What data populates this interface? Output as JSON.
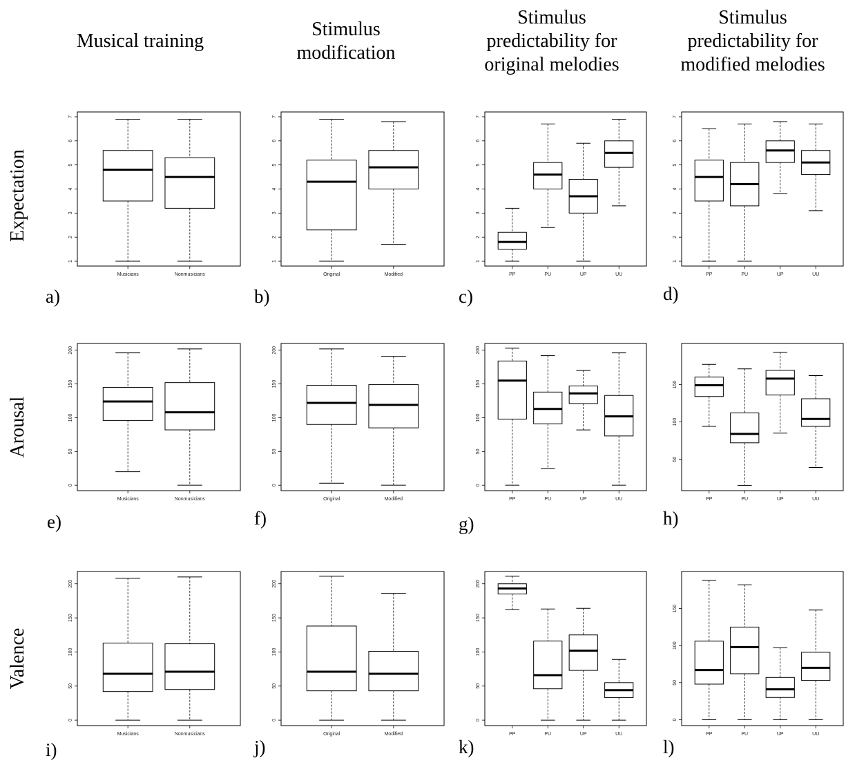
{
  "column_headers": [
    "Musical training",
    "Stimulus\nmodification",
    "Stimulus\npredictability for\noriginal melodies",
    "Stimulus\npredictability for\nmodified melodies"
  ],
  "row_headers": [
    "Expectation",
    "Arousal",
    "Valence"
  ],
  "chart_data": [
    {
      "panel": "a)",
      "type": "box",
      "categories": [
        "Musicians",
        "Nonmusicians"
      ],
      "yticks": [
        1,
        2,
        3,
        4,
        5,
        6,
        7
      ],
      "ylim": [
        0.8,
        7.2
      ],
      "boxes": [
        {
          "min": 1,
          "q1": 3.5,
          "median": 4.8,
          "q3": 5.6,
          "max": 6.9
        },
        {
          "min": 1,
          "q1": 3.2,
          "median": 4.5,
          "q3": 5.3,
          "max": 6.9
        }
      ]
    },
    {
      "panel": "b)",
      "type": "box",
      "categories": [
        "Original",
        "Modified"
      ],
      "yticks": [
        1,
        2,
        3,
        4,
        5,
        6,
        7
      ],
      "ylim": [
        0.8,
        7.2
      ],
      "boxes": [
        {
          "min": 1,
          "q1": 2.3,
          "median": 4.3,
          "q3": 5.2,
          "max": 6.9
        },
        {
          "min": 1.7,
          "q1": 4.0,
          "median": 4.9,
          "q3": 5.6,
          "max": 6.8
        }
      ]
    },
    {
      "panel": "c)",
      "type": "box",
      "categories": [
        "PP",
        "PU",
        "UP",
        "UU"
      ],
      "yticks": [
        1,
        2,
        3,
        4,
        5,
        6,
        7
      ],
      "ylim": [
        0.8,
        7.2
      ],
      "boxes": [
        {
          "min": 1,
          "q1": 1.5,
          "median": 1.8,
          "q3": 2.2,
          "max": 3.2
        },
        {
          "min": 2.4,
          "q1": 4.0,
          "median": 4.6,
          "q3": 5.1,
          "max": 6.7
        },
        {
          "min": 1,
          "q1": 3.0,
          "median": 3.7,
          "q3": 4.4,
          "max": 5.9
        },
        {
          "min": 3.3,
          "q1": 4.9,
          "median": 5.5,
          "q3": 6.0,
          "max": 6.9
        }
      ]
    },
    {
      "panel": "d)",
      "type": "box",
      "categories": [
        "PP",
        "PU",
        "UP",
        "UU"
      ],
      "yticks": [
        1,
        2,
        3,
        4,
        5,
        6,
        7
      ],
      "ylim": [
        0.8,
        7.2
      ],
      "boxes": [
        {
          "min": 1,
          "q1": 3.5,
          "median": 4.5,
          "q3": 5.2,
          "max": 6.5
        },
        {
          "min": 1,
          "q1": 3.3,
          "median": 4.2,
          "q3": 5.1,
          "max": 6.7
        },
        {
          "min": 3.8,
          "q1": 5.1,
          "median": 5.6,
          "q3": 6.0,
          "max": 6.8
        },
        {
          "min": 3.1,
          "q1": 4.6,
          "median": 5.1,
          "q3": 5.6,
          "max": 6.7
        }
      ]
    },
    {
      "panel": "e)",
      "type": "box",
      "categories": [
        "Musicians",
        "Nonmusicians"
      ],
      "yticks": [
        0,
        50,
        100,
        150,
        200
      ],
      "ylim": [
        -8,
        210
      ],
      "boxes": [
        {
          "min": 20,
          "q1": 96,
          "median": 124,
          "q3": 145,
          "max": 196
        },
        {
          "min": 0,
          "q1": 82,
          "median": 108,
          "q3": 152,
          "max": 202
        }
      ]
    },
    {
      "panel": "f)",
      "type": "box",
      "categories": [
        "Original",
        "Modified"
      ],
      "yticks": [
        0,
        50,
        100,
        150,
        200
      ],
      "ylim": [
        -8,
        210
      ],
      "boxes": [
        {
          "min": 3,
          "q1": 90,
          "median": 122,
          "q3": 148,
          "max": 202
        },
        {
          "min": 0,
          "q1": 85,
          "median": 119,
          "q3": 149,
          "max": 191
        }
      ]
    },
    {
      "panel": "g)",
      "type": "box",
      "categories": [
        "PP",
        "PU",
        "UP",
        "UU"
      ],
      "yticks": [
        0,
        50,
        100,
        150,
        200
      ],
      "ylim": [
        -8,
        210
      ],
      "boxes": [
        {
          "min": 0,
          "q1": 98,
          "median": 155,
          "q3": 184,
          "max": 203
        },
        {
          "min": 25,
          "q1": 91,
          "median": 113,
          "q3": 138,
          "max": 192
        },
        {
          "min": 82,
          "q1": 121,
          "median": 136,
          "q3": 147,
          "max": 170
        },
        {
          "min": 0,
          "q1": 73,
          "median": 102,
          "q3": 133,
          "max": 196
        }
      ]
    },
    {
      "panel": "h)",
      "type": "box",
      "categories": [
        "PP",
        "PU",
        "UP",
        "UU"
      ],
      "yticks": [
        50,
        100,
        150
      ],
      "ylim": [
        8,
        205
      ],
      "boxes": [
        {
          "min": 94,
          "q1": 134,
          "median": 149,
          "q3": 160,
          "max": 177
        },
        {
          "min": 15,
          "q1": 72,
          "median": 84,
          "q3": 112,
          "max": 171
        },
        {
          "min": 85,
          "q1": 136,
          "median": 158,
          "q3": 169,
          "max": 193
        },
        {
          "min": 39,
          "q1": 94,
          "median": 104,
          "q3": 131,
          "max": 162
        }
      ]
    },
    {
      "panel": "i)",
      "type": "box",
      "categories": [
        "Musicians",
        "Nonmusicians"
      ],
      "yticks": [
        0,
        50,
        100,
        150,
        200
      ],
      "ylim": [
        -8,
        218
      ],
      "boxes": [
        {
          "min": 0,
          "q1": 42,
          "median": 68,
          "q3": 113,
          "max": 208
        },
        {
          "min": 0,
          "q1": 45,
          "median": 71,
          "q3": 112,
          "max": 210
        }
      ]
    },
    {
      "panel": "j)",
      "type": "box",
      "categories": [
        "Original",
        "Modified"
      ],
      "yticks": [
        0,
        50,
        100,
        150,
        200
      ],
      "ylim": [
        -8,
        218
      ],
      "boxes": [
        {
          "min": 0,
          "q1": 43,
          "median": 71,
          "q3": 138,
          "max": 211
        },
        {
          "min": 0,
          "q1": 43,
          "median": 68,
          "q3": 101,
          "max": 186
        }
      ]
    },
    {
      "panel": "k)",
      "type": "box",
      "categories": [
        "PP",
        "PU",
        "UP",
        "UU"
      ],
      "yticks": [
        0,
        50,
        100,
        150,
        200
      ],
      "ylim": [
        -8,
        218
      ],
      "boxes": [
        {
          "min": 162,
          "q1": 185,
          "median": 193,
          "q3": 200,
          "max": 211
        },
        {
          "min": 0,
          "q1": 46,
          "median": 66,
          "q3": 116,
          "max": 163
        },
        {
          "min": 0,
          "q1": 73,
          "median": 102,
          "q3": 125,
          "max": 164
        },
        {
          "min": 0,
          "q1": 33,
          "median": 44,
          "q3": 55,
          "max": 89
        }
      ]
    },
    {
      "panel": "l)",
      "type": "box",
      "categories": [
        "PP",
        "PU",
        "UP",
        "UU"
      ],
      "yticks": [
        0,
        50,
        100,
        150
      ],
      "ylim": [
        -8,
        200
      ],
      "boxes": [
        {
          "min": 0,
          "q1": 48,
          "median": 67,
          "q3": 106,
          "max": 188
        },
        {
          "min": 0,
          "q1": 62,
          "median": 98,
          "q3": 125,
          "max": 182
        },
        {
          "min": 0,
          "q1": 30,
          "median": 41,
          "q3": 57,
          "max": 97
        },
        {
          "min": 0,
          "q1": 53,
          "median": 70,
          "q3": 91,
          "max": 148
        }
      ]
    }
  ]
}
